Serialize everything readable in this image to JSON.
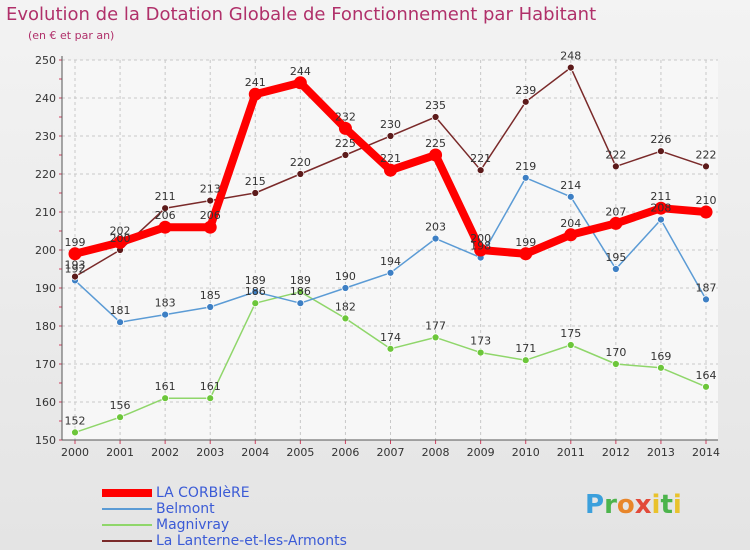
{
  "title": "Evolution de la Dotation Globale de Fonctionnement par Habitant",
  "subtitle": "(en € et par an)",
  "logo_text": "Proxiti",
  "chart_data": {
    "type": "line",
    "title": "Evolution de la Dotation Globale de Fonctionnement par Habitant",
    "subtitle": "(en € et par an)",
    "xlabel": "",
    "ylabel": "",
    "x": [
      "2000",
      "2001",
      "2002",
      "2003",
      "2004",
      "2005",
      "2006",
      "2007",
      "2008",
      "2009",
      "2010",
      "2011",
      "2012",
      "2013",
      "2014"
    ],
    "ylim": [
      150,
      250
    ],
    "yticks": [
      150,
      160,
      170,
      180,
      190,
      200,
      210,
      220,
      230,
      240,
      250
    ],
    "grid": true,
    "legend_position": "bottom-left",
    "series": [
      {
        "name": "LA CORBIèRE",
        "color": "#ff0000",
        "values": [
          199,
          202,
          206,
          206,
          241,
          244,
          232,
          221,
          225,
          200,
          199,
          204,
          207,
          211,
          210
        ]
      },
      {
        "name": "Belmont",
        "color": "#5b9bd5",
        "values": [
          192,
          181,
          183,
          185,
          189,
          186,
          190,
          194,
          203,
          198,
          219,
          214,
          195,
          208,
          187
        ]
      },
      {
        "name": "Magnivray",
        "color": "#8fd66a",
        "values": [
          152,
          156,
          161,
          161,
          186,
          189,
          182,
          174,
          177,
          173,
          171,
          175,
          170,
          169,
          164
        ]
      },
      {
        "name": "La Lanterne-et-les-Armonts",
        "color": "#7a2a2a",
        "values": [
          193,
          200,
          211,
          213,
          215,
          220,
          225,
          230,
          235,
          221,
          239,
          248,
          222,
          226,
          222
        ]
      }
    ]
  }
}
